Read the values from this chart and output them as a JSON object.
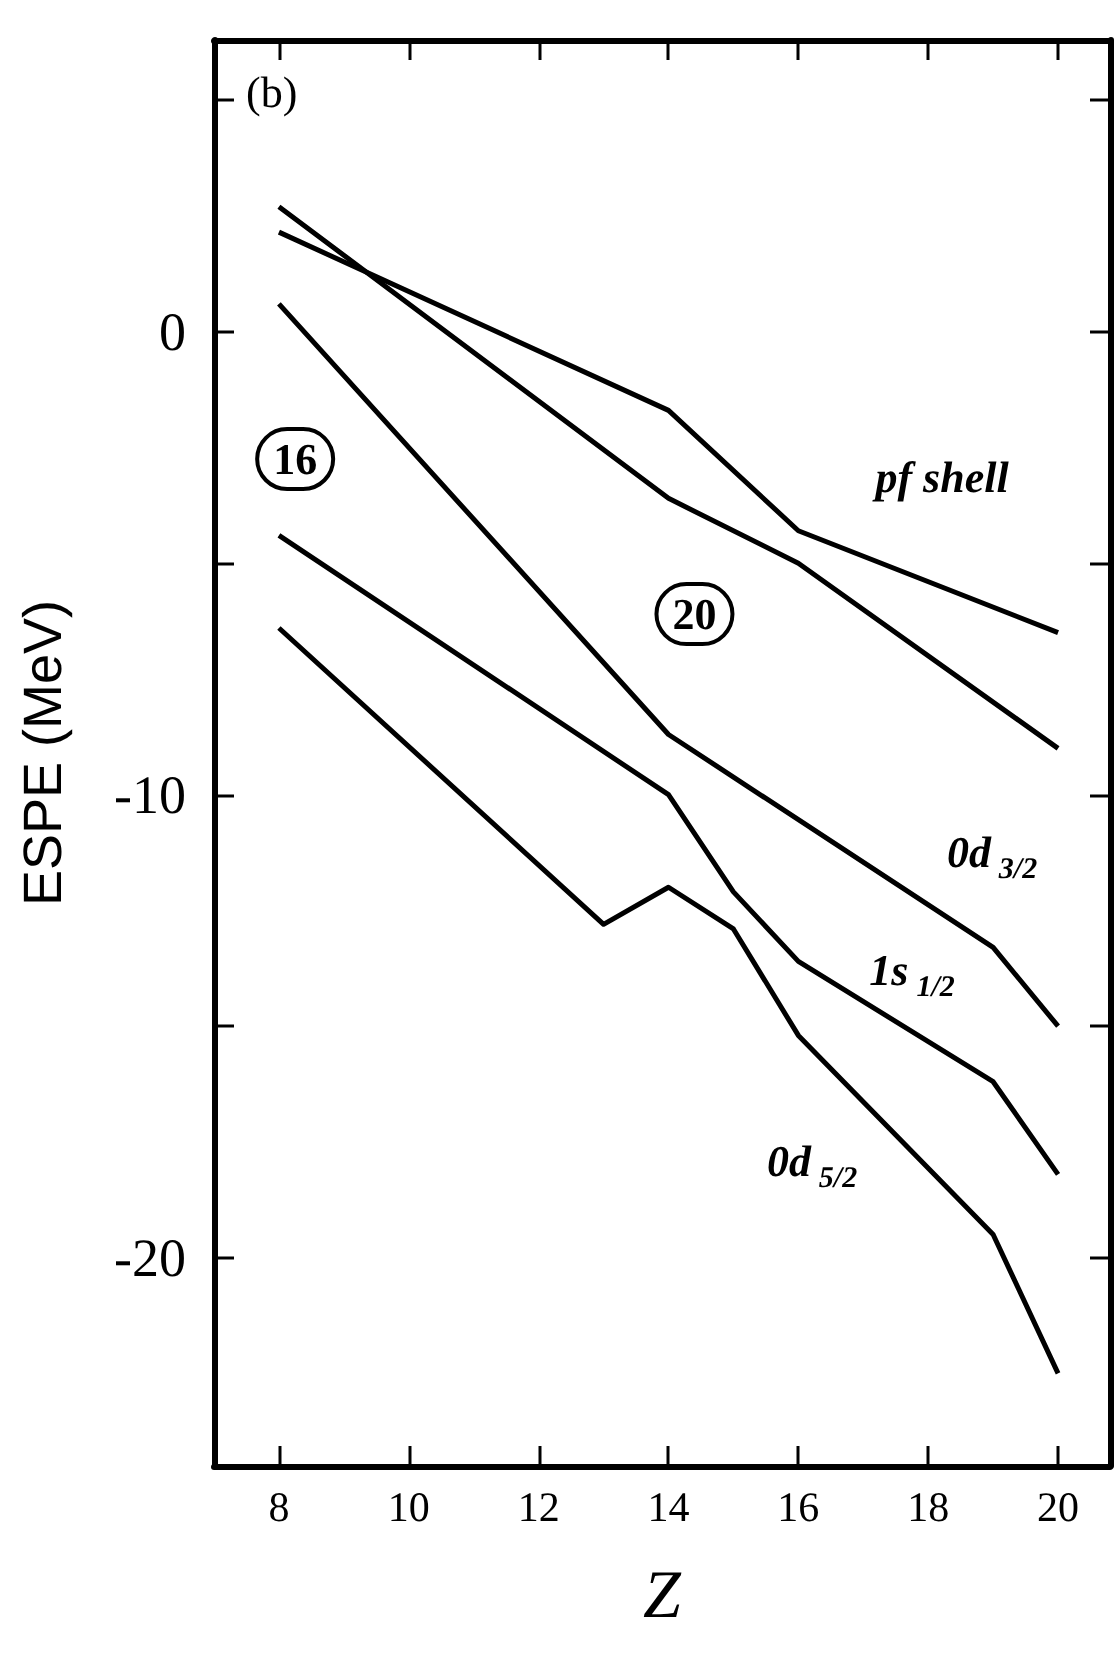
{
  "chart_data": {
    "type": "line",
    "title": "(b)",
    "xlabel": "Z",
    "ylabel": "ESPE (MeV)",
    "xlim": [
      7,
      20.8
    ],
    "ylim": [
      -24.5,
      6.3
    ],
    "xticks": [
      8,
      10,
      12,
      14,
      16,
      18,
      20
    ],
    "yticks": [
      {
        "value": -20,
        "label": "-20"
      },
      {
        "value": -15,
        "label": null
      },
      {
        "value": -10,
        "label": "-10"
      },
      {
        "value": -5,
        "label": null
      },
      {
        "value": 0,
        "label": "0"
      },
      {
        "value": 5,
        "label": null
      }
    ],
    "grid": false,
    "series": [
      {
        "name": "pf shell",
        "color": "#000000",
        "x": [
          8,
          14,
          16,
          20
        ],
        "values": [
          2.15,
          -1.7,
          -4.3,
          -6.5
        ]
      },
      {
        "color": "#000000",
        "x": [
          8,
          14,
          16,
          20
        ],
        "values": [
          2.7,
          -3.6,
          -5.0,
          -9.0
        ]
      },
      {
        "name": "0d$_{3/2}$",
        "color": "#000000",
        "x": [
          8,
          14,
          19,
          20
        ],
        "values": [
          0.6,
          -8.7,
          -13.3,
          -15.0
        ]
      },
      {
        "name": "1s$_{1/2}$",
        "color": "#000000",
        "x": [
          8,
          14,
          15,
          16,
          19,
          20
        ],
        "values": [
          -4.4,
          -10.0,
          -12.1,
          -13.6,
          -16.2,
          -18.2
        ]
      },
      {
        "name": "0d$_{5/2}$",
        "color": "#000000",
        "x": [
          8,
          13,
          14,
          15,
          16,
          19,
          20
        ],
        "values": [
          -6.4,
          -12.8,
          -12.0,
          -12.9,
          -15.2,
          -19.5,
          -22.5
        ]
      }
    ],
    "annotations": [
      {
        "text": "16",
        "x": 8.25,
        "y": -2.75
      },
      {
        "text": "20",
        "x": 14.4,
        "y": -6.1
      }
    ]
  }
}
